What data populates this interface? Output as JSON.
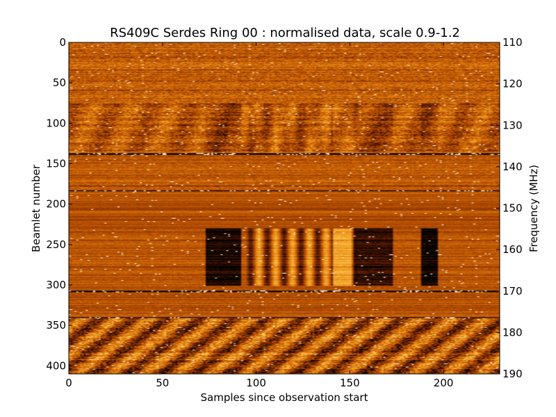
{
  "chart_data": {
    "type": "heatmap",
    "title": "RS409C Serdes Ring 00 : normalised data, scale 0.9-1.2",
    "xlabel": "Samples since observation start",
    "ylabel": "Beamlet number",
    "ylabel_right": "Frequency (MHz)",
    "xlim": [
      0,
      230
    ],
    "ylim": [
      410,
      0
    ],
    "ylim_right": [
      110,
      190
    ],
    "x_ticks": [
      0,
      50,
      100,
      150,
      200
    ],
    "y_ticks": [
      0,
      50,
      100,
      150,
      200,
      250,
      300,
      350,
      400
    ],
    "y_ticks_right": [
      110,
      120,
      130,
      140,
      150,
      160,
      170,
      180,
      190
    ],
    "color_scale": [
      0.9,
      1.2
    ],
    "colormap": [
      "#000000",
      "#5a1a00",
      "#a84400",
      "#d8720a",
      "#f6aa2c",
      "#ffdc80",
      "#ffffff"
    ],
    "grid": false
  }
}
